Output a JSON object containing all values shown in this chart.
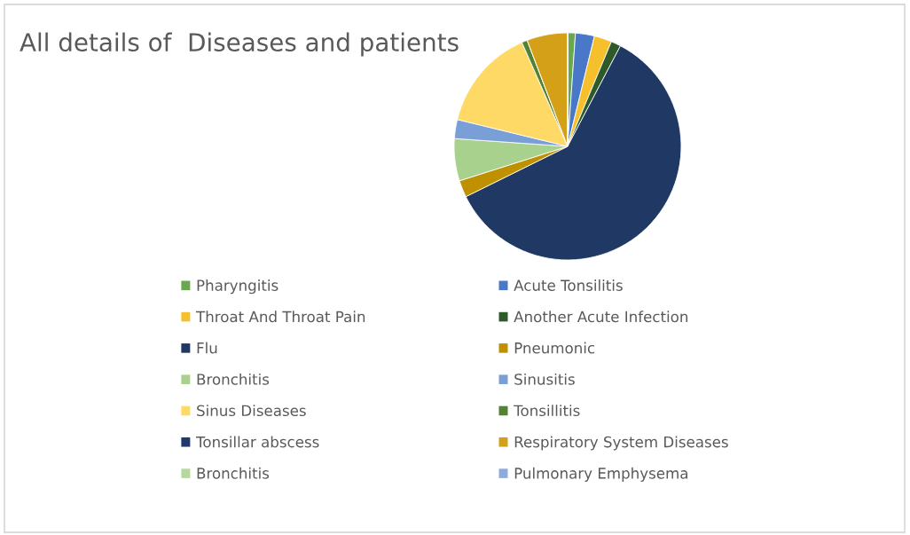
{
  "chart_data": {
    "type": "pie",
    "title": "All details of  Diseases and patients",
    "categories": [
      "Pharyngitis",
      "Acute Tonsilitis",
      "Throat And Throat Pain",
      "Another Acute Infection",
      "Flu",
      "Pneumonic",
      "Bronchitis",
      "Sinusitis",
      "Sinus Diseases",
      "Tonsillitis",
      "Tonsillar abscess",
      "Respiratory System Diseases",
      "Bronchitis",
      "Pulmonary Emphysema"
    ],
    "values": [
      1.1,
      2.7,
      2.5,
      1.4,
      60,
      2.4,
      6,
      2.7,
      14.6,
      0.8,
      0,
      5.8,
      0,
      0
    ],
    "colors": [
      "#6aa84f",
      "#4a78c8",
      "#f5c02c",
      "#2e5a2a",
      "#1f3864",
      "#bf9000",
      "#a9d18e",
      "#7a9fd6",
      "#ffd966",
      "#548235",
      "#203a70",
      "#d4a017",
      "#b5d99c",
      "#8faadc"
    ],
    "legend": "bottom"
  }
}
